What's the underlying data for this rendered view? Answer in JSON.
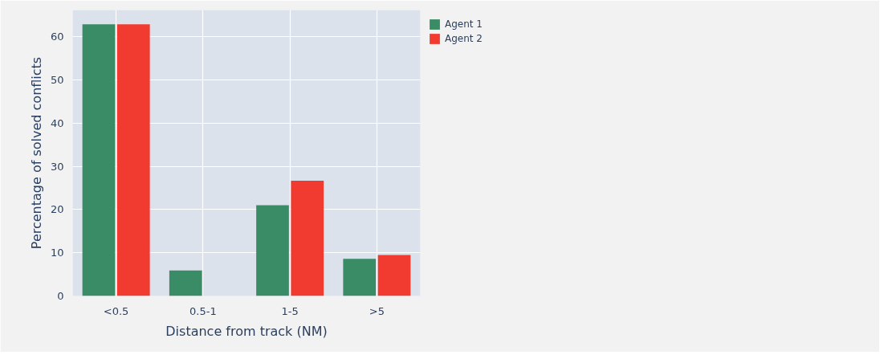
{
  "chart_data": {
    "type": "bar",
    "xlabel": "Distance from track (NM)",
    "ylabel": "Percentage of solved conflicts",
    "categories": [
      "<0.5",
      "0.5-1",
      "1-5",
      ">5"
    ],
    "series": [
      {
        "name": "Agent 1",
        "color": "#3a8c66",
        "values": [
          62.9,
          5.9,
          21.0,
          8.6
        ]
      },
      {
        "name": "Agent 2",
        "color": "#f23b30",
        "values": [
          62.9,
          0,
          26.7,
          9.5
        ]
      }
    ],
    "ylim": [
      0,
      66.2
    ],
    "yticks": [
      0,
      10,
      20,
      30,
      40,
      50,
      60
    ],
    "grid": true,
    "legend": "top right"
  }
}
